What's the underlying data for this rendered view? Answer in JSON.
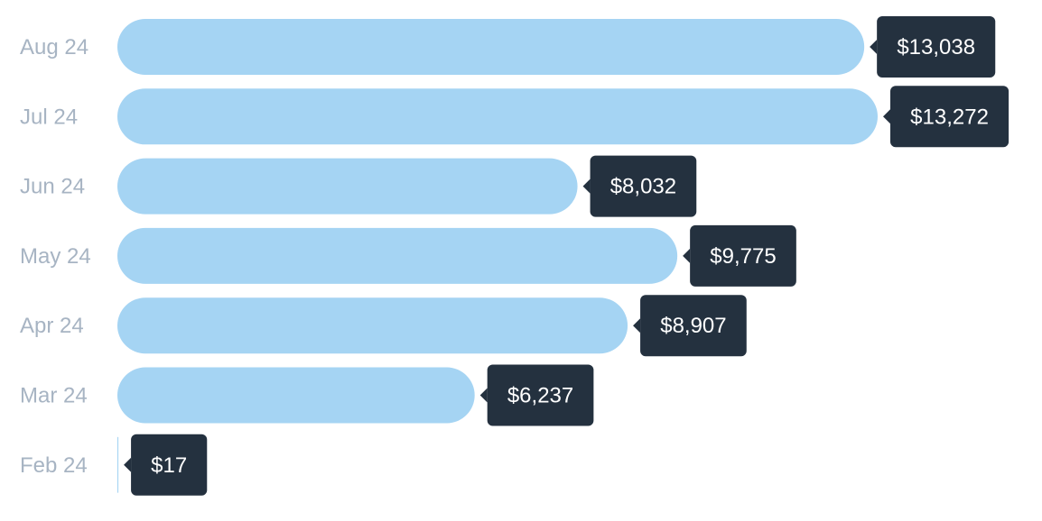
{
  "chart_data": {
    "type": "bar",
    "orientation": "horizontal",
    "categories": [
      "Aug 24",
      "Jul 24",
      "Jun 24",
      "May 24",
      "Apr 24",
      "Mar 24",
      "Feb 24"
    ],
    "values": [
      13038,
      13272,
      8032,
      9775,
      8907,
      6237,
      17
    ],
    "value_labels": [
      "$13,038",
      "$13,272",
      "$8,032",
      "$9,775",
      "$8,907",
      "$6,237",
      "$17"
    ],
    "title": "",
    "xlabel": "",
    "ylabel": "",
    "xlim": [
      0,
      13272
    ],
    "grid": false,
    "legend": "none"
  },
  "colors": {
    "bar": "#a5d4f3",
    "tooltip_bg": "#24313f",
    "tooltip_text": "#ffffff",
    "category_text": "#a7b4c3"
  }
}
